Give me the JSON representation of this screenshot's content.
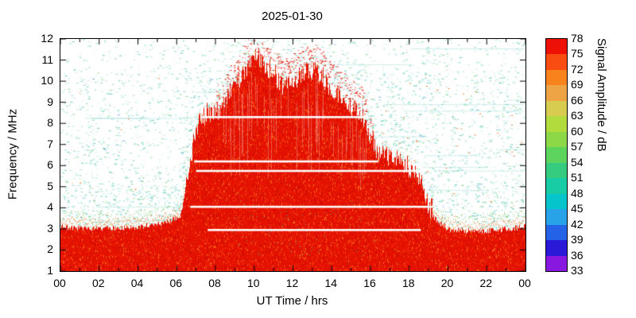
{
  "chart_data": {
    "type": "heatmap",
    "title": "2025-01-30",
    "xlabel": "UT Time / hrs",
    "ylabel": "Frequency / MHz",
    "colorbar_label": "Signal Amplitude / dB",
    "xlim": [
      0,
      24
    ],
    "ylim": [
      1,
      12
    ],
    "x_tick_values": [
      0,
      2,
      4,
      6,
      8,
      10,
      12,
      14,
      16,
      18,
      20,
      22,
      24
    ],
    "x_tick_labels": [
      "00",
      "02",
      "04",
      "06",
      "08",
      "10",
      "12",
      "14",
      "16",
      "18",
      "20",
      "22",
      "00"
    ],
    "y_tick_values": [
      1,
      2,
      3,
      4,
      5,
      6,
      7,
      8,
      9,
      10,
      11,
      12
    ],
    "colorbar": {
      "ticks": [
        33,
        36,
        39,
        42,
        45,
        48,
        51,
        54,
        57,
        60,
        63,
        66,
        69,
        72,
        75,
        78
      ],
      "unit": "dB",
      "colors_bottom_to_top": [
        "#8818e0",
        "#2a1ad8",
        "#2462e8",
        "#28a2e8",
        "#06c4cc",
        "#18cca6",
        "#36cc80",
        "#5cd45e",
        "#8cd846",
        "#b2dc3e",
        "#d8cc50",
        "#eea444",
        "#f8821c",
        "#f84c10",
        "#ee1004"
      ]
    },
    "heat": {
      "description": "HF spectrogram: strong (red, ~75-78 dB) signal region; envelope gives maximum frequency of strong signal vs UT time; weak cyan speckle background; horizontal white dropout lines inside red region",
      "envelope_max_freq_by_time": [
        {
          "t": 0,
          "f": 3.1
        },
        {
          "t": 2,
          "f": 3.0
        },
        {
          "t": 4,
          "f": 3.1
        },
        {
          "t": 5.5,
          "f": 3.3
        },
        {
          "t": 6.2,
          "f": 3.6
        },
        {
          "t": 6.6,
          "f": 5.5
        },
        {
          "t": 7.0,
          "f": 7.8
        },
        {
          "t": 7.4,
          "f": 8.3
        },
        {
          "t": 8.3,
          "f": 8.6
        },
        {
          "t": 8.8,
          "f": 9.6
        },
        {
          "t": 9.3,
          "f": 10.2
        },
        {
          "t": 9.8,
          "f": 10.9
        },
        {
          "t": 10.2,
          "f": 11.2
        },
        {
          "t": 10.6,
          "f": 10.6
        },
        {
          "t": 11.0,
          "f": 10.2
        },
        {
          "t": 11.5,
          "f": 9.7
        },
        {
          "t": 12.0,
          "f": 10.0
        },
        {
          "t": 12.6,
          "f": 10.4
        },
        {
          "t": 13.2,
          "f": 10.5
        },
        {
          "t": 13.8,
          "f": 9.8
        },
        {
          "t": 14.4,
          "f": 9.3
        },
        {
          "t": 15.0,
          "f": 8.8
        },
        {
          "t": 15.6,
          "f": 8.4
        },
        {
          "t": 16.0,
          "f": 7.2
        },
        {
          "t": 16.4,
          "f": 6.6
        },
        {
          "t": 17.0,
          "f": 6.4
        },
        {
          "t": 17.6,
          "f": 6.3
        },
        {
          "t": 18.0,
          "f": 5.7
        },
        {
          "t": 18.6,
          "f": 5.4
        },
        {
          "t": 19.0,
          "f": 4.0
        },
        {
          "t": 19.4,
          "f": 3.4
        },
        {
          "t": 20.0,
          "f": 3.0
        },
        {
          "t": 21.0,
          "f": 2.9
        },
        {
          "t": 22.0,
          "f": 2.9
        },
        {
          "t": 23.0,
          "f": 3.0
        },
        {
          "t": 24.0,
          "f": 3.1
        }
      ],
      "white_dropout_lines": [
        {
          "f": 8.3,
          "t1": 7.3,
          "t2": 15.8
        },
        {
          "f": 6.2,
          "t1": 6.9,
          "t2": 16.4
        },
        {
          "f": 5.75,
          "t1": 7.0,
          "t2": 18.4
        },
        {
          "f": 4.05,
          "t1": 6.7,
          "t2": 19.2
        },
        {
          "f": 2.95,
          "t1": 7.6,
          "t2": 18.6
        }
      ],
      "speckle_colors": [
        "#9fe0d8",
        "#7ed6c9",
        "#bce9e3",
        "#66ccbe",
        "#a6e4d0",
        "#8fd89a"
      ],
      "red_colors": [
        "#e51200",
        "#cc0a00",
        "#fa3b10",
        "#f87c20"
      ]
    }
  }
}
